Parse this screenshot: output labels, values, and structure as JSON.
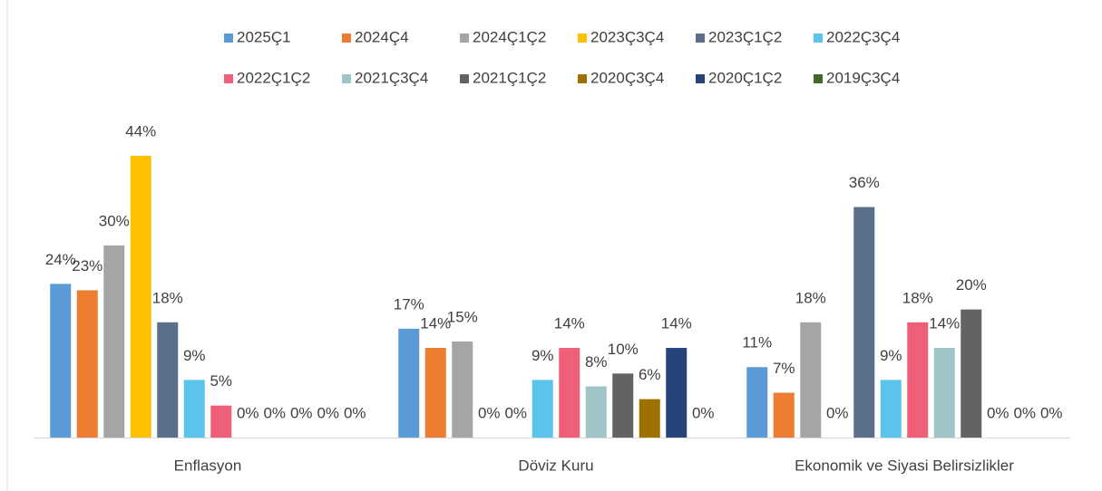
{
  "chart_data": {
    "type": "bar",
    "categories": [
      "Enflasyon",
      "Döviz Kuru",
      "Ekonomik ve Siyasi Belirsizlikler"
    ],
    "series": [
      {
        "name": "2025Ç1",
        "color": "#5b9bd5",
        "values": [
          24,
          17,
          11
        ],
        "value_labels": [
          "24%",
          "17%",
          "11%"
        ]
      },
      {
        "name": "2024Ç4",
        "color": "#ed7d31",
        "values": [
          23,
          14,
          7
        ],
        "value_labels": [
          "23%",
          "14%",
          "7%"
        ]
      },
      {
        "name": "2024Ç1Ç2",
        "color": "#a5a5a5",
        "values": [
          30,
          15,
          18
        ],
        "value_labels": [
          "30%",
          "15%",
          "18%"
        ]
      },
      {
        "name": "2023Ç3Ç4",
        "color": "#ffc000",
        "values": [
          44,
          0,
          0
        ],
        "value_labels": [
          "44%",
          "0%",
          "0%"
        ]
      },
      {
        "name": "2023Ç1Ç2",
        "color": "#5a6f89",
        "values": [
          18,
          0,
          36
        ],
        "value_labels": [
          "18%",
          "0%",
          "36%"
        ]
      },
      {
        "name": "2022Ç3Ç4",
        "color": "#5bc4ec",
        "values": [
          9,
          9,
          9
        ],
        "value_labels": [
          "9%",
          "9%",
          "9%"
        ]
      },
      {
        "name": "2022Ç1Ç2",
        "color": "#ef5f7a",
        "values": [
          5,
          14,
          18
        ],
        "value_labels": [
          "5%",
          "14%",
          "18%"
        ]
      },
      {
        "name": "2021Ç3Ç4",
        "color": "#9fc5c8",
        "values": [
          0,
          8,
          14
        ],
        "value_labels": [
          "0%",
          "8%",
          "14%"
        ]
      },
      {
        "name": "2021Ç1Ç2",
        "color": "#636363",
        "values": [
          0,
          10,
          20
        ],
        "value_labels": [
          "0%",
          "10%",
          "20%"
        ]
      },
      {
        "name": "2020Ç3Ç4",
        "color": "#9e7000",
        "values": [
          0,
          6,
          0
        ],
        "value_labels": [
          "0%",
          "6%",
          "0%"
        ]
      },
      {
        "name": "2020Ç1Ç2",
        "color": "#264478",
        "values": [
          0,
          14,
          0
        ],
        "value_labels": [
          "0%",
          "14%",
          "0%"
        ]
      },
      {
        "name": "2019Ç3Ç4",
        "color": "#43682b",
        "values": [
          0,
          0,
          0
        ],
        "value_labels": [
          "0%",
          "0%",
          "0%"
        ]
      }
    ]
  }
}
